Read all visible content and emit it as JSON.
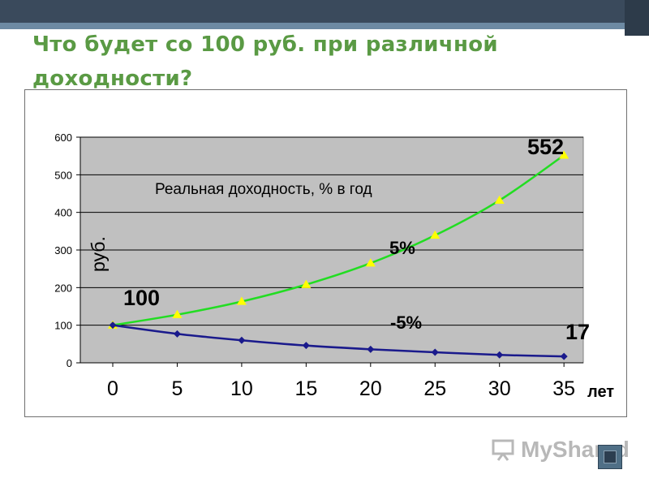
{
  "slide": {
    "title": "Что будет со 100 руб. при различной доходности?",
    "watermark": "MyShared"
  },
  "colors": {
    "topbar": "#3a4a5c",
    "title": "#5a9a44",
    "plot_background": "#c0c0c0",
    "positive_series": "#22dd22",
    "positive_marker": "#ffff00",
    "negative_series": "#1a1a8c"
  },
  "chart_data": {
    "type": "line",
    "subtitle": "Реальная доходность, % в год",
    "ylabel": "руб.",
    "xlabel": "лет",
    "x": [
      0,
      5,
      10,
      15,
      20,
      25,
      30,
      35
    ],
    "xtick_labels": [
      "0",
      "5",
      "10",
      "15",
      "20",
      "25",
      "30",
      "35"
    ],
    "ylim": [
      0,
      600
    ],
    "ytick_labels": [
      "0",
      "100",
      "200",
      "300",
      "400",
      "500",
      "600"
    ],
    "grid": true,
    "series": [
      {
        "name": "5%",
        "marker": "triangle",
        "values": [
          100,
          128,
          163,
          208,
          265,
          339,
          432,
          552
        ]
      },
      {
        "name": "-5%",
        "marker": "diamond",
        "values": [
          100,
          77,
          60,
          46,
          36,
          28,
          21,
          17
        ]
      }
    ],
    "annotations": {
      "start": "100",
      "end_positive": "552",
      "end_negative": "17"
    }
  }
}
